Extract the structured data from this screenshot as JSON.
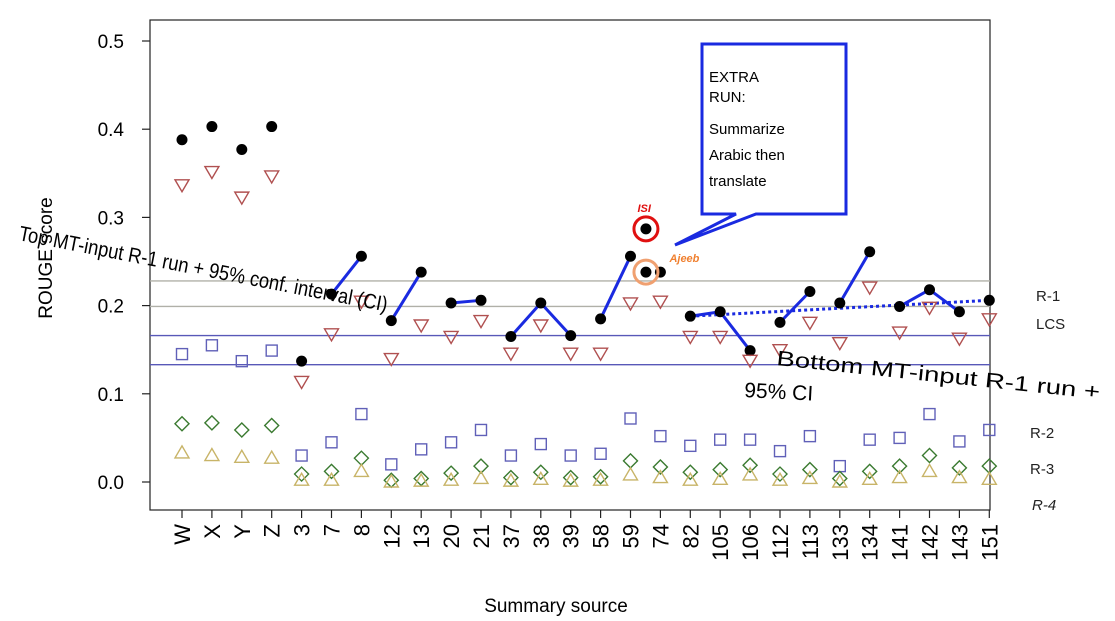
{
  "chart_data": {
    "type": "scatter",
    "title": "",
    "xlabel": "Summary source",
    "ylabel": "ROUGE score",
    "ylim": [
      0.0,
      0.52
    ],
    "yticks": [
      "0.0",
      "0.1",
      "0.2",
      "0.3",
      "0.4",
      "0.5"
    ],
    "categories": [
      "W",
      "X",
      "Y",
      "Z",
      "3",
      "7",
      "8",
      "12",
      "13",
      "20",
      "21",
      "37",
      "38",
      "39",
      "58",
      "59",
      "74",
      "82",
      "105",
      "106",
      "112",
      "113",
      "133",
      "134",
      "141",
      "142",
      "143",
      "151"
    ],
    "series": [
      {
        "name": "R-1",
        "marker": "filled-circle",
        "color": "#000000",
        "values": [
          0.388,
          0.403,
          0.377,
          0.403,
          0.137,
          0.213,
          0.256,
          0.183,
          0.238,
          0.203,
          0.206,
          0.165,
          0.203,
          0.166,
          0.185,
          0.256,
          0.238,
          0.188,
          0.193,
          0.149,
          0.181,
          0.216,
          0.203,
          0.261,
          0.199,
          0.218,
          0.193,
          0.206
        ]
      },
      {
        "name": "LCS",
        "marker": "open-triangle-down",
        "color": "#b05050",
        "values": [
          0.337,
          0.352,
          0.323,
          0.347,
          0.114,
          0.168,
          0.205,
          0.14,
          0.178,
          0.165,
          0.183,
          0.146,
          0.178,
          0.146,
          0.146,
          0.203,
          0.205,
          0.165,
          0.165,
          0.138,
          0.15,
          0.181,
          0.158,
          0.221,
          0.17,
          0.198,
          0.163,
          0.185
        ]
      },
      {
        "name": "R-2",
        "marker": "open-square",
        "color": "#6060b8",
        "values": [
          0.145,
          0.155,
          0.137,
          0.149,
          0.03,
          0.045,
          0.077,
          0.02,
          0.037,
          0.045,
          0.059,
          0.03,
          0.043,
          0.03,
          0.032,
          0.072,
          0.052,
          0.041,
          0.048,
          0.048,
          0.035,
          0.052,
          0.018,
          0.048,
          0.05,
          0.077,
          0.046,
          0.059
        ]
      },
      {
        "name": "R-3",
        "marker": "open-diamond",
        "color": "#3a7a30",
        "values": [
          0.066,
          0.067,
          0.059,
          0.064,
          0.009,
          0.012,
          0.027,
          0.002,
          0.004,
          0.01,
          0.018,
          0.005,
          0.011,
          0.005,
          0.006,
          0.024,
          0.017,
          0.011,
          0.014,
          0.019,
          0.009,
          0.014,
          0.004,
          0.012,
          0.018,
          0.03,
          0.016,
          0.018
        ]
      },
      {
        "name": "R-4",
        "marker": "open-triangle-up",
        "color": "#c8b468",
        "values": [
          0.033,
          0.03,
          0.028,
          0.027,
          0.002,
          0.002,
          0.012,
          0.0,
          0.001,
          0.002,
          0.004,
          0.001,
          0.003,
          0.001,
          0.002,
          0.008,
          0.005,
          0.002,
          0.003,
          0.008,
          0.002,
          0.004,
          0.0,
          0.003,
          0.005,
          0.012,
          0.005,
          0.003
        ]
      }
    ],
    "extra_points": [
      {
        "label": "ISI",
        "x_between": [
          "59",
          "74"
        ],
        "y": 0.287,
        "ring_color": "#e01010",
        "label_color": "#e01010"
      },
      {
        "label": "Ajeeb",
        "x_between": [
          "59",
          "74"
        ],
        "y": 0.238,
        "ring_color": "#f0a070",
        "label_color": "#f08030"
      }
    ],
    "reference_lines": [
      {
        "label": "R-1",
        "y": 0.228,
        "color": "#b0b0a8"
      },
      {
        "label": "LCS",
        "y": 0.199,
        "color": "#b0b0a8"
      },
      {
        "label": "",
        "y": 0.166,
        "color": "#5858b8"
      },
      {
        "label": "",
        "y": 0.133,
        "color": "#5858b8"
      }
    ],
    "row_labels": [
      "R-1",
      "LCS",
      "R-2",
      "R-3",
      "R-4"
    ],
    "annotations": {
      "top": "Top MT-input R-1 run + 95% conf. interval (CI)",
      "bottom_line1": "Bottom MT-input R-1 run +",
      "bottom_line2": "95% CI",
      "callout_lines": [
        "EXTRA",
        "RUN:",
        "Summarize",
        "Arabic then",
        "translate"
      ],
      "isi": "ISI",
      "ajeeb": "Ajeeb"
    },
    "connections": [
      [
        "7",
        "8"
      ],
      [
        "12",
        "13"
      ],
      [
        "20",
        "21"
      ],
      [
        "37",
        "38"
      ],
      [
        "38",
        "39"
      ],
      [
        "58",
        "59"
      ],
      [
        "82",
        "105"
      ],
      [
        "105",
        "106"
      ],
      [
        "112",
        "113"
      ],
      [
        "133",
        "134"
      ],
      [
        "141",
        "142"
      ],
      [
        "142",
        "143"
      ]
    ],
    "dotted_connections": [
      [
        "82",
        "151"
      ]
    ],
    "connection_color": "#1a2ae0",
    "grid": false,
    "legend": "right side row labels"
  }
}
